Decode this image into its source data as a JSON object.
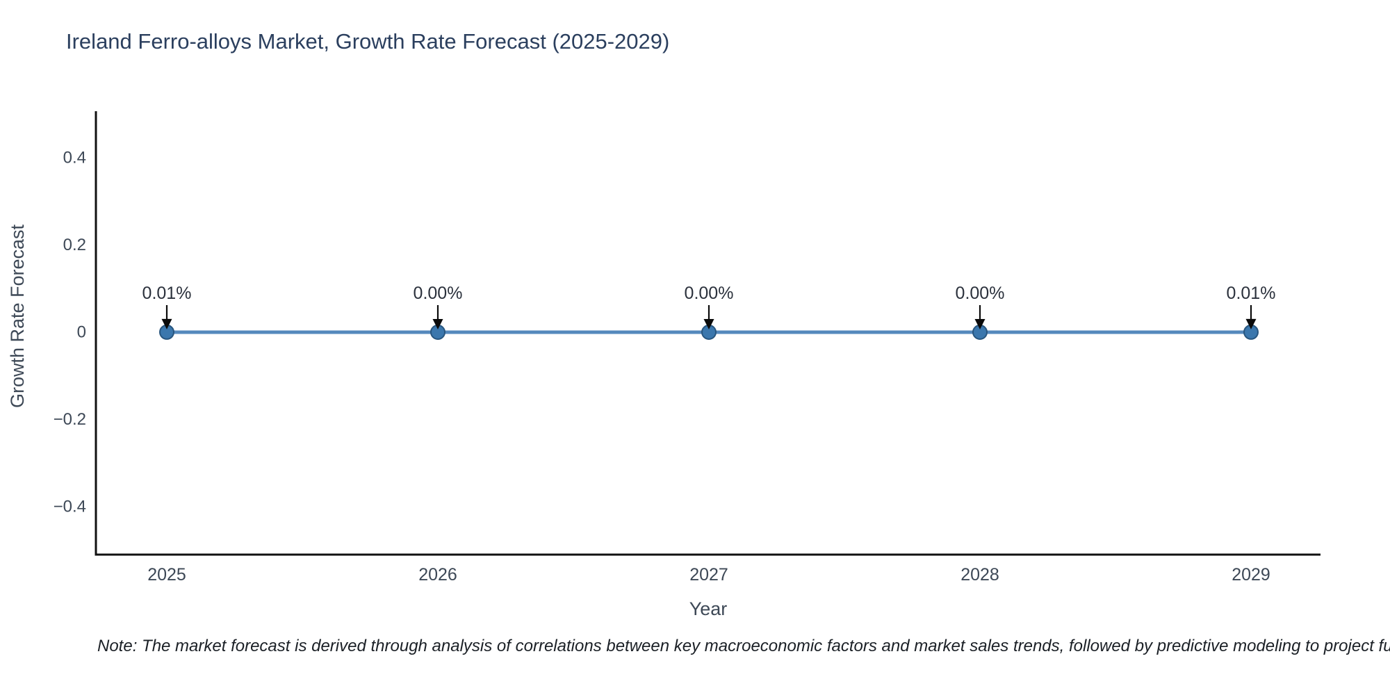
{
  "page": {
    "title": "Ireland Ferro-alloys Market, Growth Rate Forecast (2025-2029)",
    "note": "Note: The market forecast is derived through analysis of correlations between key macroeconomic factors and market sales trends, followed by predictive modeling to project future sales."
  },
  "chart_data": {
    "type": "line",
    "title": "Ireland Ferro-alloys Market, Growth Rate Forecast (2025-2029)",
    "xlabel": "Year",
    "ylabel": "Growth Rate Forecast",
    "categories": [
      "2025",
      "2026",
      "2027",
      "2028",
      "2029"
    ],
    "series": [
      {
        "name": "Growth Rate Forecast",
        "values": [
          0.0001,
          0.0,
          0.0,
          0.0,
          0.0001
        ]
      }
    ],
    "point_labels": [
      "0.01%",
      "0.00%",
      "0.00%",
      "0.00%",
      "0.01%"
    ],
    "ytick_labels": [
      "0.4",
      "0.2",
      "0",
      "−0.2",
      "−0.4"
    ],
    "ytick_values": [
      0.4,
      0.2,
      0,
      -0.2,
      -0.4
    ],
    "ylim": [
      -0.51,
      0.51
    ],
    "grid": false,
    "legend_position": "none",
    "annotation_style": "black-arrow-down-to-marker",
    "spines_visible": [
      "left",
      "bottom"
    ],
    "colors": {
      "line": "#5589bd",
      "marker": "#3b77ad",
      "marker_edge": "#28567f",
      "arrow": "#0a0a0a",
      "axis": "#111111",
      "title": "#2b3f5e",
      "tick": "#3d4856",
      "annotation_text": "#2b313c",
      "note": "#1b2026"
    }
  }
}
